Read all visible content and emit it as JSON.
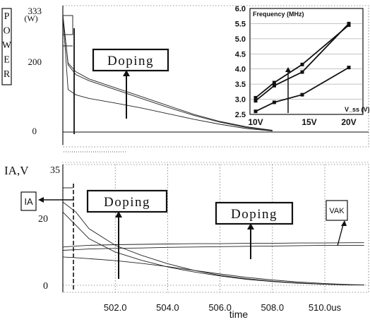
{
  "chart_data": [
    {
      "type": "line",
      "panel": "top",
      "ylabel": "POWER",
      "yunit": "(W)",
      "yticks": [
        "333",
        "200",
        "0"
      ],
      "ylim": [
        0,
        333
      ],
      "x": [
        500.0,
        500.2,
        500.5,
        501.0,
        502.0,
        503.0,
        504.0,
        505.0,
        506.0,
        507.0,
        508.0
      ],
      "series": [
        {
          "values": [
            330,
            195,
            170,
            150,
            125,
            100,
            75,
            50,
            30,
            15,
            5
          ]
        },
        {
          "values": [
            330,
            190,
            162,
            145,
            120,
            95,
            70,
            47,
            28,
            13,
            4
          ]
        },
        {
          "values": [
            330,
            120,
            105,
            95,
            82,
            68,
            52,
            36,
            22,
            10,
            3
          ]
        }
      ],
      "annotation": "Doping"
    },
    {
      "type": "line",
      "panel": "inset",
      "title": "Frequency (MHz)",
      "xlabel": "V_ss (V)",
      "categories": [
        "10V",
        "15V",
        "20V"
      ],
      "x": [
        10,
        12,
        15,
        20
      ],
      "yticks": [
        "6.0",
        "5.5",
        "5.0",
        "4.5",
        "4.0",
        "3.5",
        "3.0",
        "2.5"
      ],
      "ylim": [
        2.5,
        6.0
      ],
      "series": [
        {
          "values": [
            3.05,
            3.55,
            4.15,
            5.45
          ]
        },
        {
          "values": [
            2.95,
            3.45,
            3.9,
            5.5
          ]
        },
        {
          "values": [
            2.6,
            2.9,
            3.15,
            4.05
          ]
        }
      ]
    },
    {
      "type": "line",
      "panel": "bottom",
      "ylabel": "IA,V",
      "yticks": [
        "35",
        "20",
        "0"
      ],
      "ylim": [
        0,
        35
      ],
      "xticks": [
        "502.0",
        "504.0",
        "506.0",
        "508.0",
        "510.0us"
      ],
      "xlim": [
        500.0,
        511.5
      ],
      "xlabel": "time",
      "x": [
        500.0,
        500.5,
        501.0,
        502.0,
        503.0,
        504.0,
        505.0,
        506.0,
        507.0,
        508.0,
        509.0,
        510.0,
        511.0,
        511.5
      ],
      "series": [
        {
          "values": [
            25,
            22,
            17,
            12,
            9,
            6.5,
            4.5,
            3,
            2,
            1.2,
            0.7,
            0.3,
            0.1,
            0.1
          ]
        },
        {
          "values": [
            22,
            18,
            14,
            10,
            7.5,
            5.5,
            4,
            2.8,
            1.8,
            1.1,
            0.6,
            0.3,
            0.1,
            0.1
          ]
        },
        {
          "values": [
            11.5,
            11.8,
            12,
            12.2,
            12.3,
            12.4,
            12.5,
            12.5,
            12.6,
            12.6,
            12.7,
            12.7,
            12.8,
            12.8
          ]
        },
        {
          "values": [
            10.5,
            10.7,
            10.9,
            11.1,
            11.2,
            11.4,
            11.5,
            11.6,
            11.7,
            11.8,
            11.9,
            12.0,
            12.0,
            12.0
          ]
        },
        {
          "values": [
            8.5,
            8.3,
            8.0,
            7.4,
            6.6,
            5.6,
            4.5,
            3.4,
            2.4,
            1.6,
            1.0,
            0.5,
            0.2,
            0.1
          ]
        }
      ],
      "labels": {
        "ia": "IA",
        "vak": "VAK",
        "doping_1": "Doping",
        "doping_2": "Doping"
      }
    }
  ]
}
